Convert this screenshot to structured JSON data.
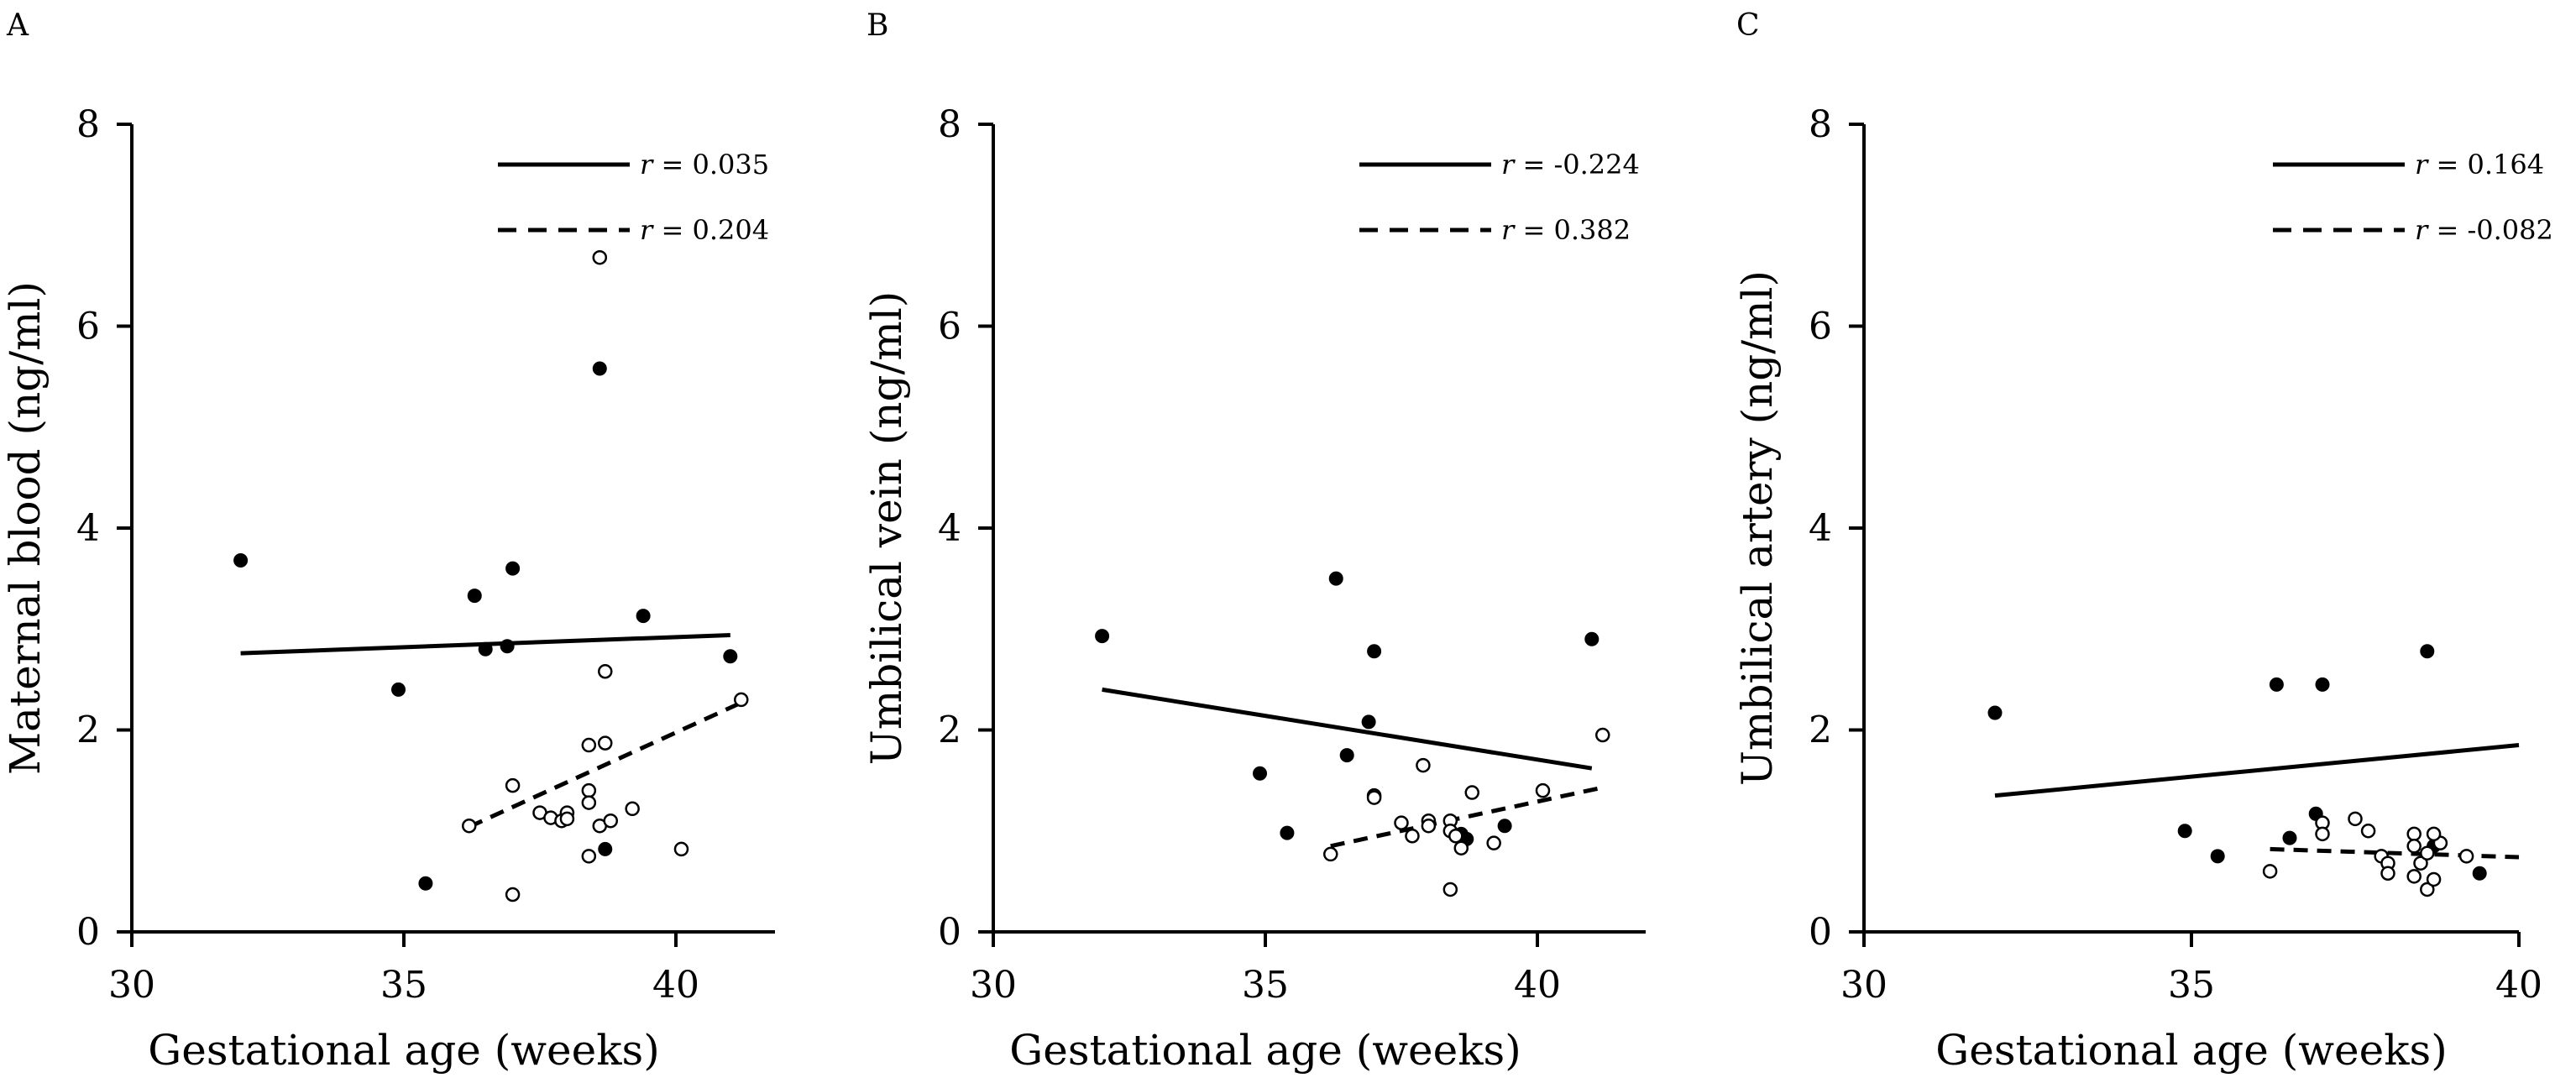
{
  "chart_data": [
    {
      "type": "scatter",
      "panel": "A",
      "xlabel": "Gestational age (weeks)",
      "ylabel": "Maternal blood (ng/ml)",
      "xlim": [
        30,
        42
      ],
      "ylim": [
        0,
        8
      ],
      "xticks": [
        "30",
        "35",
        "40"
      ],
      "yticks": [
        "0",
        "2",
        "4",
        "6",
        "8"
      ],
      "legend": [
        {
          "style": "solid",
          "prefix": "r",
          "label": "= 0.035"
        },
        {
          "style": "dashed",
          "prefix": "r",
          "label": "= 0.204"
        }
      ],
      "series": [
        {
          "name": "filled",
          "marker": "filled",
          "points": [
            [
              32.0,
              3.68
            ],
            [
              34.9,
              2.4
            ],
            [
              35.4,
              0.48
            ],
            [
              36.3,
              3.33
            ],
            [
              36.5,
              2.8
            ],
            [
              36.9,
              2.83
            ],
            [
              37.0,
              3.6
            ],
            [
              38.6,
              5.58
            ],
            [
              38.7,
              0.82
            ],
            [
              39.4,
              3.13
            ],
            [
              41.0,
              2.73
            ]
          ]
        },
        {
          "name": "open",
          "marker": "open",
          "points": [
            [
              36.2,
              1.05
            ],
            [
              37.0,
              1.45
            ],
            [
              37.0,
              0.37
            ],
            [
              37.5,
              1.18
            ],
            [
              37.7,
              1.13
            ],
            [
              37.9,
              1.1
            ],
            [
              38.0,
              1.18
            ],
            [
              38.0,
              1.12
            ],
            [
              38.4,
              1.85
            ],
            [
              38.4,
              1.4
            ],
            [
              38.4,
              1.28
            ],
            [
              38.4,
              0.75
            ],
            [
              38.6,
              1.05
            ],
            [
              38.6,
              6.68
            ],
            [
              38.7,
              2.58
            ],
            [
              38.7,
              1.87
            ],
            [
              38.8,
              1.1
            ],
            [
              39.2,
              1.22
            ],
            [
              40.1,
              0.82
            ],
            [
              41.2,
              2.3
            ]
          ]
        }
      ],
      "fits": [
        {
          "style": "solid",
          "x": [
            32.0,
            41.0
          ],
          "y": [
            2.76,
            2.94
          ]
        },
        {
          "style": "dashed",
          "x": [
            36.2,
            41.2
          ],
          "y": [
            1.04,
            2.27
          ]
        }
      ]
    },
    {
      "type": "scatter",
      "panel": "B",
      "xlabel": "Gestational age (weeks)",
      "ylabel": "Umbilical vein (ng/ml)",
      "xlim": [
        30,
        42
      ],
      "ylim": [
        0,
        8
      ],
      "xticks": [
        "30",
        "35",
        "40"
      ],
      "yticks": [
        "0",
        "2",
        "4",
        "6",
        "8"
      ],
      "legend": [
        {
          "style": "solid",
          "prefix": "r",
          "label": "= -0.224"
        },
        {
          "style": "dashed",
          "prefix": "r",
          "label": "= 0.382"
        }
      ],
      "series": [
        {
          "name": "filled",
          "marker": "filled",
          "points": [
            [
              32.0,
              2.93
            ],
            [
              34.9,
              1.57
            ],
            [
              35.4,
              0.98
            ],
            [
              36.3,
              3.5
            ],
            [
              36.5,
              1.75
            ],
            [
              36.9,
              2.08
            ],
            [
              37.0,
              2.78
            ],
            [
              38.6,
              0.97
            ],
            [
              38.7,
              0.92
            ],
            [
              39.4,
              1.05
            ],
            [
              41.0,
              2.9
            ]
          ]
        },
        {
          "name": "open",
          "marker": "open",
          "points": [
            [
              36.2,
              0.77
            ],
            [
              37.0,
              1.35
            ],
            [
              37.0,
              1.33
            ],
            [
              37.5,
              1.08
            ],
            [
              37.7,
              0.95
            ],
            [
              37.9,
              1.65
            ],
            [
              38.0,
              1.1
            ],
            [
              38.0,
              1.05
            ],
            [
              38.4,
              1.1
            ],
            [
              38.4,
              1.0
            ],
            [
              38.4,
              0.42
            ],
            [
              38.5,
              0.95
            ],
            [
              38.6,
              0.83
            ],
            [
              38.8,
              1.38
            ],
            [
              39.2,
              0.88
            ],
            [
              40.1,
              1.4
            ],
            [
              41.2,
              1.95
            ]
          ]
        }
      ],
      "fits": [
        {
          "style": "solid",
          "x": [
            32.0,
            41.0
          ],
          "y": [
            2.4,
            1.62
          ]
        },
        {
          "style": "dashed",
          "x": [
            36.2,
            41.2
          ],
          "y": [
            0.85,
            1.43
          ]
        }
      ]
    },
    {
      "type": "scatter",
      "panel": "C",
      "xlabel": "Gestational age (weeks)",
      "ylabel": "Umbilical artery (ng/ml)",
      "xlim": [
        30,
        40
      ],
      "ylim": [
        0,
        8
      ],
      "xticks": [
        "30",
        "35",
        "40"
      ],
      "yticks": [
        "0",
        "2",
        "4",
        "6",
        "8"
      ],
      "legend": [
        {
          "style": "solid",
          "prefix": "r",
          "label": "= 0.164"
        },
        {
          "style": "dashed",
          "prefix": "r",
          "label": "= -0.082"
        }
      ],
      "series": [
        {
          "name": "filled",
          "marker": "filled",
          "points": [
            [
              32.0,
              2.17
            ],
            [
              34.9,
              1.0
            ],
            [
              35.4,
              0.75
            ],
            [
              36.3,
              2.45
            ],
            [
              36.5,
              0.93
            ],
            [
              36.9,
              1.17
            ],
            [
              37.0,
              2.45
            ],
            [
              38.6,
              2.78
            ],
            [
              38.7,
              0.85
            ],
            [
              39.4,
              0.58
            ]
          ]
        },
        {
          "name": "open",
          "marker": "open",
          "points": [
            [
              36.2,
              0.6
            ],
            [
              37.0,
              1.08
            ],
            [
              37.0,
              0.97
            ],
            [
              37.5,
              1.12
            ],
            [
              37.7,
              1.0
            ],
            [
              37.9,
              0.75
            ],
            [
              38.0,
              0.68
            ],
            [
              38.0,
              0.58
            ],
            [
              38.4,
              0.97
            ],
            [
              38.4,
              0.85
            ],
            [
              38.4,
              0.55
            ],
            [
              38.5,
              0.68
            ],
            [
              38.6,
              0.42
            ],
            [
              38.6,
              0.78
            ],
            [
              38.7,
              0.52
            ],
            [
              38.8,
              0.88
            ],
            [
              38.7,
              0.97
            ],
            [
              39.2,
              0.75
            ]
          ]
        }
      ],
      "fits": [
        {
          "style": "solid",
          "x": [
            32.0,
            40.0
          ],
          "y": [
            1.35,
            1.85
          ]
        },
        {
          "style": "dashed",
          "x": [
            36.2,
            40.0
          ],
          "y": [
            0.82,
            0.74
          ]
        }
      ]
    }
  ]
}
